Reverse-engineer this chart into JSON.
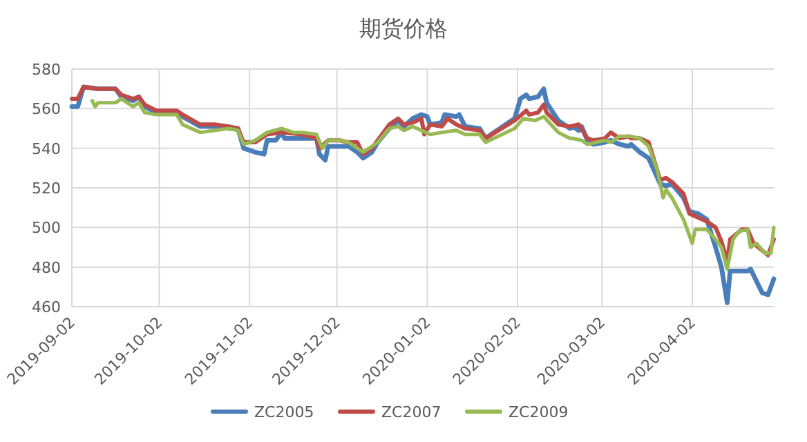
{
  "chart_data": {
    "type": "line",
    "title": "期货价格",
    "xlim": [
      "2019-09-02",
      "2020-04-30"
    ],
    "ylim": [
      460,
      580
    ],
    "yticks": [
      460,
      480,
      500,
      520,
      540,
      560,
      580
    ],
    "xticks": [
      "2019-09-02",
      "2019-10-02",
      "2019-11-02",
      "2019-12-02",
      "2020-01-02",
      "2020-02-02",
      "2020-03-02",
      "2020-04-02"
    ],
    "grid": true,
    "legend": "bottom",
    "series": [
      {
        "name": "ZC2005",
        "color": "#4a7ebb",
        "x": [
          "2019-09-02",
          "2019-09-04",
          "2019-09-06",
          "2019-09-11",
          "2019-09-17",
          "2019-09-19",
          "2019-09-23",
          "2019-09-25",
          "2019-09-27",
          "2019-10-01",
          "2019-10-08",
          "2019-10-10",
          "2019-10-16",
          "2019-10-21",
          "2019-10-26",
          "2019-10-29",
          "2019-10-31",
          "2019-11-04",
          "2019-11-07",
          "2019-11-08",
          "2019-11-11",
          "2019-11-13",
          "2019-11-14",
          "2019-11-20",
          "2019-11-25",
          "2019-11-26",
          "2019-11-28",
          "2019-11-29",
          "2019-12-03",
          "2019-12-06",
          "2019-12-09",
          "2019-12-11",
          "2019-12-14",
          "2019-12-16",
          "2019-12-20",
          "2019-12-23",
          "2019-12-25",
          "2019-12-28",
          "2019-12-31",
          "2020-01-02",
          "2020-01-03",
          "2020-01-07",
          "2020-01-08",
          "2020-01-12",
          "2020-01-13",
          "2020-01-15",
          "2020-01-20",
          "2020-01-22",
          "2020-02-01",
          "2020-02-03",
          "2020-02-05",
          "2020-02-06",
          "2020-02-09",
          "2020-02-11",
          "2020-02-12",
          "2020-02-16",
          "2020-02-20",
          "2020-02-21",
          "2020-02-23",
          "2020-02-24",
          "2020-02-26",
          "2020-02-28",
          "2020-03-03",
          "2020-03-05",
          "2020-03-08",
          "2020-03-11",
          "2020-03-12",
          "2020-03-15",
          "2020-03-18",
          "2020-03-22",
          "2020-03-24",
          "2020-03-26",
          "2020-03-30",
          "2020-04-01",
          "2020-04-04",
          "2020-04-07",
          "2020-04-10",
          "2020-04-12",
          "2020-04-14",
          "2020-04-15",
          "2020-04-21",
          "2020-04-22",
          "2020-04-26",
          "2020-04-28",
          "2020-04-30"
        ],
        "values": [
          561,
          561,
          571,
          570,
          570,
          566,
          564,
          566,
          561,
          558,
          558,
          556,
          551,
          551,
          550,
          550,
          540,
          538,
          537,
          544,
          544,
          548,
          545,
          545,
          545,
          537,
          534,
          541,
          541,
          541,
          538,
          535,
          538,
          543,
          550,
          554,
          551,
          555,
          557,
          556,
          552,
          553,
          557,
          556,
          557,
          551,
          550,
          545,
          555,
          565,
          567,
          565,
          566,
          570,
          563,
          554,
          550,
          551,
          549,
          551,
          544,
          542,
          543,
          544,
          542,
          541,
          542,
          538,
          535,
          522,
          521,
          522,
          515,
          508,
          507,
          504,
          490,
          480,
          462,
          478,
          478,
          479,
          467,
          466,
          474
        ]
      },
      {
        "name": "ZC2007",
        "color": "#be4b48",
        "x": [
          "2019-09-02",
          "2019-09-04",
          "2019-09-06",
          "2019-09-11",
          "2019-09-17",
          "2019-09-19",
          "2019-09-23",
          "2019-09-25",
          "2019-09-27",
          "2019-10-01",
          "2019-10-08",
          "2019-10-10",
          "2019-10-16",
          "2019-10-21",
          "2019-10-26",
          "2019-10-29",
          "2019-10-31",
          "2019-11-04",
          "2019-11-08",
          "2019-11-13",
          "2019-11-20",
          "2019-11-25",
          "2019-11-26",
          "2019-11-29",
          "2019-12-03",
          "2019-12-06",
          "2019-12-09",
          "2019-12-11",
          "2019-12-14",
          "2019-12-16",
          "2019-12-20",
          "2019-12-23",
          "2019-12-25",
          "2019-12-28",
          "2019-12-31",
          "2020-01-01",
          "2020-01-03",
          "2020-01-07",
          "2020-01-09",
          "2020-01-12",
          "2020-01-15",
          "2020-01-20",
          "2020-01-22",
          "2020-02-01",
          "2020-02-05",
          "2020-02-06",
          "2020-02-09",
          "2020-02-11",
          "2020-02-12",
          "2020-02-16",
          "2020-02-20",
          "2020-02-23",
          "2020-02-26",
          "2020-02-28",
          "2020-03-03",
          "2020-03-05",
          "2020-03-08",
          "2020-03-11",
          "2020-03-12",
          "2020-03-15",
          "2020-03-18",
          "2020-03-22",
          "2020-03-24",
          "2020-03-26",
          "2020-03-30",
          "2020-04-01",
          "2020-04-04",
          "2020-04-07",
          "2020-04-10",
          "2020-04-12",
          "2020-04-14",
          "2020-04-15",
          "2020-04-19",
          "2020-04-21",
          "2020-04-23",
          "2020-04-28",
          "2020-04-30"
        ],
        "values": [
          565,
          565,
          571,
          570,
          570,
          567,
          565,
          566,
          562,
          559,
          559,
          557,
          552,
          552,
          551,
          550,
          543,
          543,
          547,
          548,
          547,
          545,
          540,
          544,
          544,
          543,
          543,
          537,
          540,
          544,
          552,
          555,
          552,
          553,
          555,
          547,
          552,
          551,
          555,
          552,
          550,
          549,
          545,
          554,
          559,
          557,
          558,
          562,
          558,
          552,
          551,
          552,
          545,
          544,
          545,
          548,
          545,
          546,
          545,
          545,
          543,
          524,
          525,
          523,
          517,
          507,
          505,
          503,
          500,
          493,
          483,
          494,
          499,
          499,
          492,
          486,
          494
        ]
      },
      {
        "name": "ZC2009",
        "color": "#98b954",
        "x": [
          "2019-09-09",
          "2019-09-10",
          "2019-09-11",
          "2019-09-17",
          "2019-09-19",
          "2019-09-23",
          "2019-09-25",
          "2019-09-27",
          "2019-10-01",
          "2019-10-08",
          "2019-10-10",
          "2019-10-16",
          "2019-10-21",
          "2019-10-26",
          "2019-10-29",
          "2019-10-31",
          "2019-11-04",
          "2019-11-08",
          "2019-11-13",
          "2019-11-17",
          "2019-11-20",
          "2019-11-25",
          "2019-11-27",
          "2019-11-29",
          "2019-12-03",
          "2019-12-06",
          "2019-12-11",
          "2019-12-14",
          "2019-12-16",
          "2019-12-20",
          "2019-12-23",
          "2019-12-25",
          "2019-12-28",
          "2019-12-31",
          "2020-01-03",
          "2020-01-07",
          "2020-01-12",
          "2020-01-15",
          "2020-01-20",
          "2020-01-22",
          "2020-02-01",
          "2020-02-04",
          "2020-02-08",
          "2020-02-11",
          "2020-02-16",
          "2020-02-20",
          "2020-02-21",
          "2020-02-24",
          "2020-02-26",
          "2020-03-03",
          "2020-03-05",
          "2020-03-08",
          "2020-03-12",
          "2020-03-15",
          "2020-03-18",
          "2020-03-21",
          "2020-03-23",
          "2020-03-24",
          "2020-03-26",
          "2020-03-30",
          "2020-03-31",
          "2020-04-02",
          "2020-04-03",
          "2020-04-07",
          "2020-04-10",
          "2020-04-12",
          "2020-04-14",
          "2020-04-16",
          "2020-04-18",
          "2020-04-21",
          "2020-04-22",
          "2020-04-24",
          "2020-04-27",
          "2020-04-29",
          "2020-04-30"
        ],
        "values": [
          564,
          561,
          563,
          563,
          565,
          561,
          563,
          558,
          557,
          557,
          552,
          548,
          549,
          550,
          549,
          542,
          544,
          548,
          550,
          548,
          548,
          547,
          540,
          544,
          544,
          543,
          538,
          541,
          543,
          550,
          551,
          549,
          551,
          549,
          547,
          548,
          549,
          547,
          547,
          543,
          550,
          555,
          554,
          556,
          548,
          545,
          545,
          544,
          542,
          544,
          543,
          546,
          546,
          545,
          541,
          529,
          515,
          519,
          515,
          504,
          500,
          492,
          499,
          499,
          494,
          490,
          479,
          494,
          498,
          499,
          490,
          492,
          487,
          487,
          500
        ]
      }
    ]
  }
}
